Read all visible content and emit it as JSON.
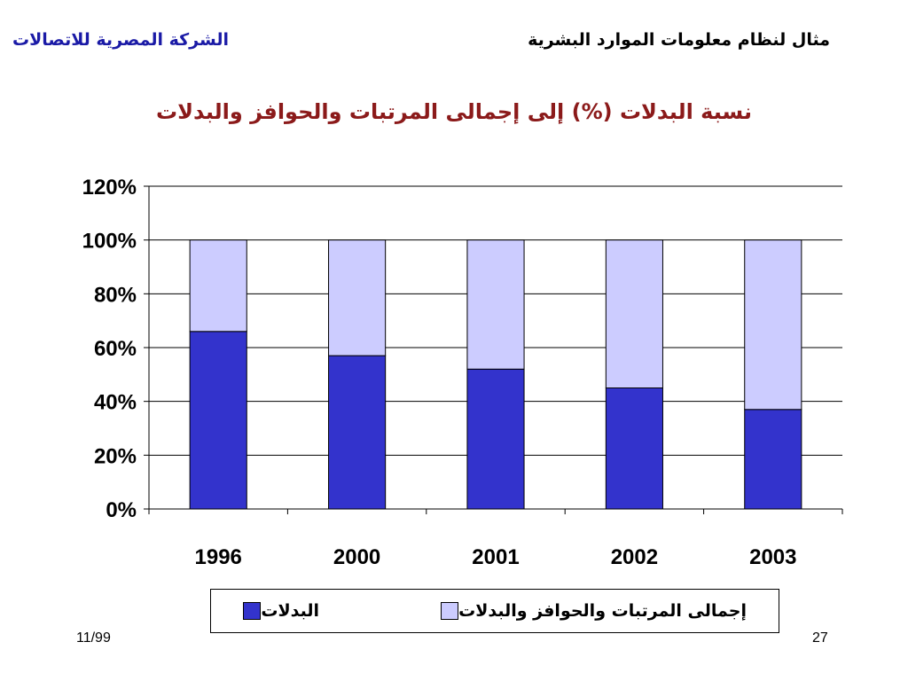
{
  "header": {
    "company": "الشركة المصرية للاتصالات",
    "topic": "مثال لنظام معلومات الموارد البشرية"
  },
  "footer": {
    "date": "11/99",
    "page": "27"
  },
  "colors": {
    "series_dark": "#3333cc",
    "series_light": "#ccccff",
    "title": "#8b1a1a",
    "company": "#1a1aa6"
  },
  "chart_data": {
    "type": "bar",
    "stacked": true,
    "title": "نسبة البدلات (%) إلى إجمالى المرتبات والحوافز والبدلات",
    "xlabel": "",
    "ylabel": "",
    "categories": [
      "1996",
      "2000",
      "2001",
      "2002",
      "2003"
    ],
    "ylim": [
      0,
      120
    ],
    "yticks": [
      "0%",
      "20%",
      "40%",
      "60%",
      "80%",
      "100%",
      "120%"
    ],
    "grid": true,
    "legend_position": "bottom",
    "series": [
      {
        "name": "البدلات",
        "values": [
          66,
          57,
          52,
          45,
          37
        ],
        "color": "#3333cc"
      },
      {
        "name": "إجمالى المرتبات والحوافز والبدلات",
        "values": [
          34,
          43,
          48,
          55,
          63
        ],
        "color": "#ccccff"
      }
    ]
  }
}
